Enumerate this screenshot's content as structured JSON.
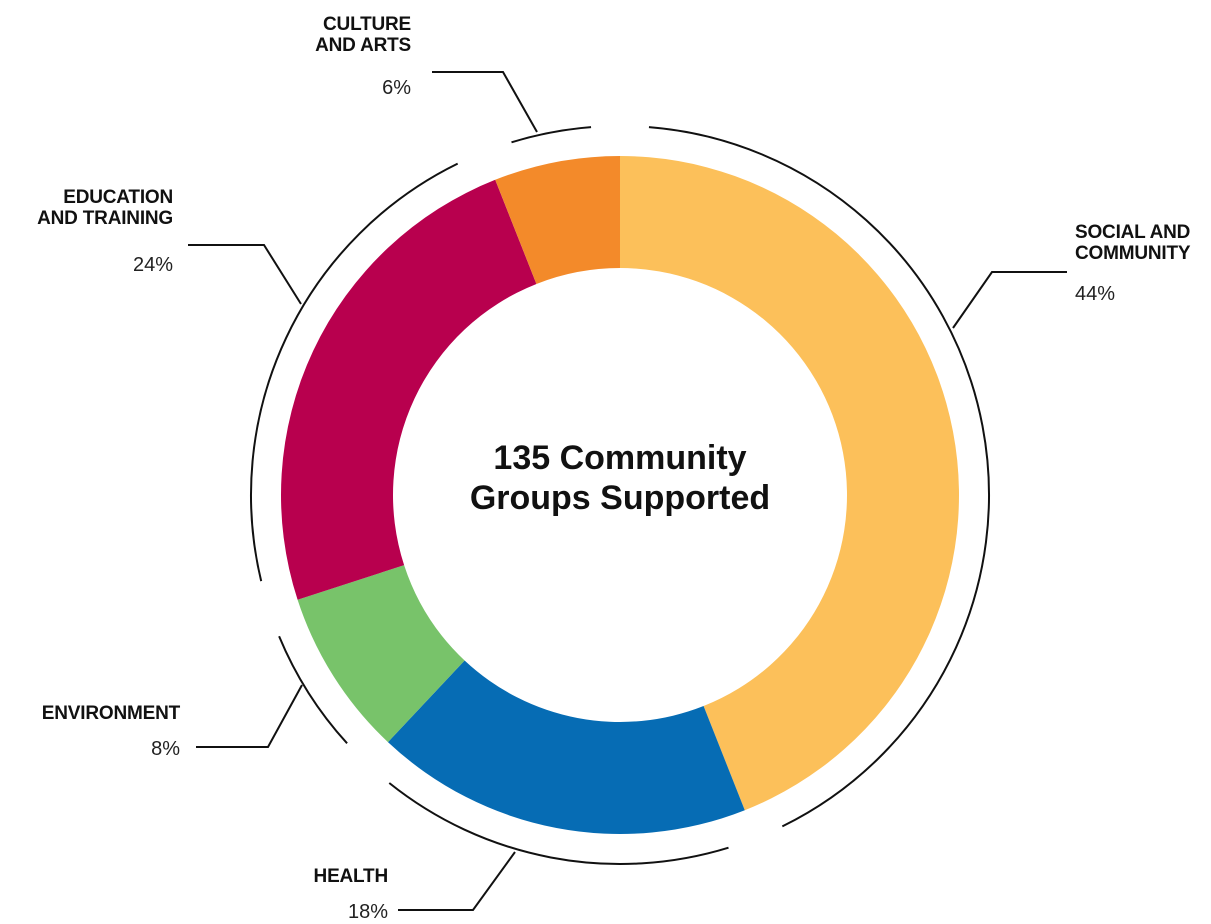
{
  "chart_data": {
    "type": "pie",
    "variant": "donut",
    "center_text": [
      "135 Community",
      "Groups Supported"
    ],
    "categories": [
      {
        "name_lines": [
          "SOCIAL AND",
          "COMMUNITY"
        ],
        "value": 44,
        "value_label": "44%",
        "color": "#FCC05A"
      },
      {
        "name_lines": [
          "HEALTH"
        ],
        "value": 18,
        "value_label": "18%",
        "color": "#066CB4"
      },
      {
        "name_lines": [
          "ENVIRONMENT"
        ],
        "value": 8,
        "value_label": "8%",
        "color": "#78C36A"
      },
      {
        "name_lines": [
          "EDUCATION",
          "AND TRAINING"
        ],
        "value": 24,
        "value_label": "24%",
        "color": "#B8004E"
      },
      {
        "name_lines": [
          "CULTURE",
          "AND ARTS"
        ],
        "value": 6,
        "value_label": "6%",
        "color": "#F38A2A"
      }
    ],
    "start_angle": "12 o'clock",
    "direction": "clockwise",
    "legend": "none"
  }
}
